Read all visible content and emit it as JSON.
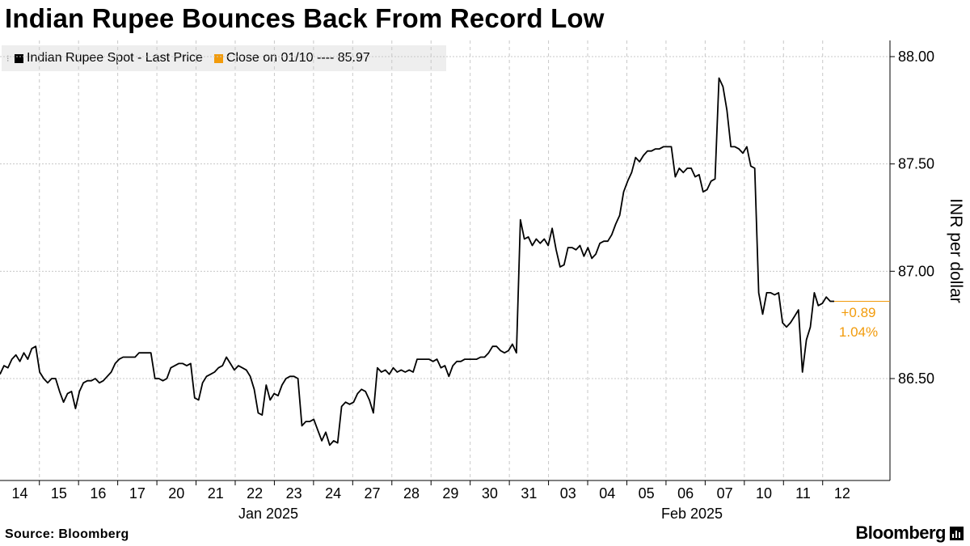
{
  "title": "Indian Rupee Bounces Back From Record Low",
  "legend": [
    {
      "label": "Indian Rupee Spot - Last Price",
      "color": "#000000"
    },
    {
      "label": "Close on 01/10 ---- 85.97",
      "color": "#f29b0b"
    }
  ],
  "footer": {
    "source": "Source: Bloomberg",
    "brand": "Bloomberg",
    "brand_icon": "bar-chart-icon"
  },
  "chart_data": {
    "type": "line",
    "ylabel": "INR per dollar",
    "ylim": [
      86.0,
      88.0
    ],
    "y_ticks": [
      "88.00",
      "87.50",
      "87.00",
      "86.50"
    ],
    "y_tick_values": [
      88.0,
      87.5,
      87.0,
      86.5
    ],
    "x_tick_labels": [
      "14",
      "15",
      "16",
      "17",
      "20",
      "21",
      "22",
      "23",
      "24",
      "27",
      "28",
      "29",
      "30",
      "31",
      "03",
      "04",
      "05",
      "06",
      "07",
      "10",
      "11",
      "12"
    ],
    "x_group_labels": [
      "Jan 2025",
      "Feb 2025"
    ],
    "grid": true,
    "legend_position": "top-left",
    "annotation": {
      "change": "+0.89",
      "pct": "1.04%",
      "color": "#f29b0b"
    },
    "series": [
      {
        "name": "Indian Rupee Spot - Last Price",
        "color": "#000000",
        "values": [
          86.52,
          86.56,
          86.55,
          86.59,
          86.61,
          86.58,
          86.62,
          86.59,
          86.64,
          86.65,
          86.53,
          86.5,
          86.48,
          86.5,
          86.5,
          86.44,
          86.39,
          86.43,
          86.44,
          86.36,
          86.44,
          86.48,
          86.49,
          86.49,
          86.5,
          86.48,
          86.49,
          86.51,
          86.53,
          86.57,
          86.59,
          86.6,
          86.6,
          86.6,
          86.6,
          86.62,
          86.62,
          86.62,
          86.62,
          86.5,
          86.5,
          86.49,
          86.5,
          86.55,
          86.56,
          86.57,
          86.57,
          86.56,
          86.57,
          86.41,
          86.4,
          86.48,
          86.51,
          86.52,
          86.53,
          86.55,
          86.56,
          86.6,
          86.57,
          86.54,
          86.56,
          86.55,
          86.54,
          86.51,
          86.45,
          86.34,
          86.33,
          86.47,
          86.4,
          86.43,
          86.42,
          86.47,
          86.5,
          86.51,
          86.51,
          86.5,
          86.28,
          86.3,
          86.3,
          86.31,
          86.26,
          86.21,
          86.25,
          86.19,
          86.21,
          86.2,
          86.37,
          86.39,
          86.38,
          86.39,
          86.43,
          86.45,
          86.44,
          86.4,
          86.34,
          86.55,
          86.53,
          86.54,
          86.52,
          86.55,
          86.53,
          86.54,
          86.53,
          86.54,
          86.53,
          86.59,
          86.59,
          86.59,
          86.59,
          86.58,
          86.59,
          86.55,
          86.56,
          86.51,
          86.56,
          86.58,
          86.58,
          86.59,
          86.59,
          86.59,
          86.59,
          86.6,
          86.6,
          86.62,
          86.65,
          86.65,
          86.63,
          86.62,
          86.63,
          86.66,
          86.62,
          87.24,
          87.15,
          87.16,
          87.12,
          87.15,
          87.13,
          87.15,
          87.12,
          87.2,
          87.1,
          87.02,
          87.03,
          87.11,
          87.11,
          87.1,
          87.12,
          87.07,
          87.11,
          87.06,
          87.08,
          87.13,
          87.14,
          87.14,
          87.17,
          87.22,
          87.26,
          87.37,
          87.42,
          87.46,
          87.53,
          87.51,
          87.54,
          87.56,
          87.56,
          87.57,
          87.57,
          87.58,
          87.58,
          87.58,
          87.44,
          87.48,
          87.46,
          87.48,
          87.48,
          87.44,
          87.45,
          87.37,
          87.38,
          87.42,
          87.43,
          87.9,
          87.86,
          87.75,
          87.58,
          87.58,
          87.57,
          87.55,
          87.58,
          87.49,
          87.48,
          86.9,
          86.8,
          86.9,
          86.9,
          86.89,
          86.9,
          86.76,
          86.74,
          86.76,
          86.79,
          86.82,
          86.53,
          86.68,
          86.74,
          86.9,
          86.84,
          86.85,
          86.88,
          86.86,
          86.86
        ]
      }
    ]
  }
}
